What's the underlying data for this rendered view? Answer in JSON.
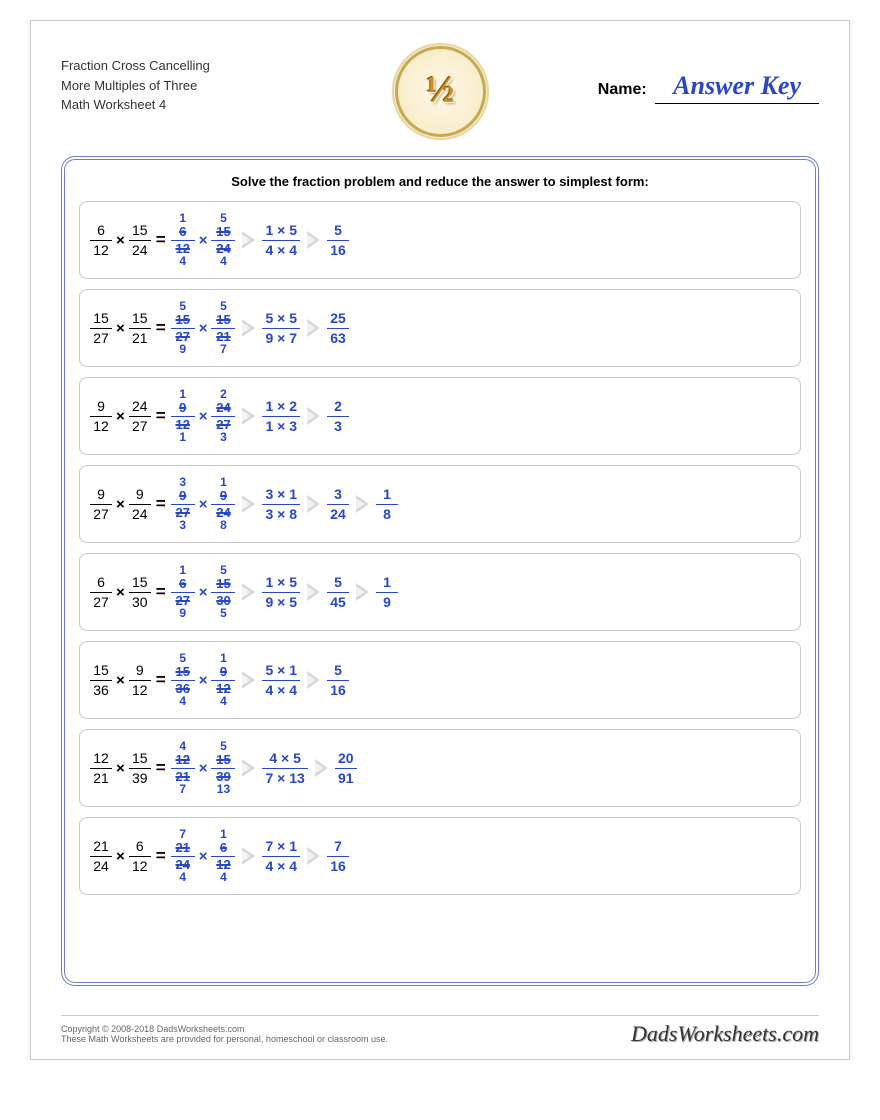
{
  "header": {
    "line1": "Fraction Cross Cancelling",
    "line2": "More Multiples of Three",
    "line3": "Math Worksheet 4",
    "logo_text": "½",
    "name_label": "Name:",
    "answer_key": "Answer Key"
  },
  "instruction": "Solve the fraction problem and reduce the answer to simplest form:",
  "colors": {
    "blue": "#2846c8",
    "border": "#6d7dc9",
    "arrow": "#d8d8d8"
  },
  "problems": [
    {
      "f1": {
        "n": "6",
        "d": "12"
      },
      "f2": {
        "n": "15",
        "d": "24"
      },
      "c1": {
        "tn": "1",
        "sn": "6",
        "sd": "12",
        "bd": "4"
      },
      "c2": {
        "tn": "5",
        "sn": "15",
        "sd": "24",
        "bd": "4"
      },
      "steps": [
        {
          "n": "1 × 5",
          "d": "4 × 4"
        },
        {
          "n": "5",
          "d": "16"
        }
      ]
    },
    {
      "f1": {
        "n": "15",
        "d": "27"
      },
      "f2": {
        "n": "15",
        "d": "21"
      },
      "c1": {
        "tn": "5",
        "sn": "15",
        "sd": "27",
        "bd": "9"
      },
      "c2": {
        "tn": "5",
        "sn": "15",
        "sd": "21",
        "bd": "7"
      },
      "steps": [
        {
          "n": "5 × 5",
          "d": "9 × 7"
        },
        {
          "n": "25",
          "d": "63"
        }
      ]
    },
    {
      "f1": {
        "n": "9",
        "d": "12"
      },
      "f2": {
        "n": "24",
        "d": "27"
      },
      "c1": {
        "tn": "1",
        "sn": "9",
        "sd": "12",
        "bd": "1"
      },
      "c2": {
        "tn": "2",
        "sn": "24",
        "sd": "27",
        "bd": "3"
      },
      "steps": [
        {
          "n": "1 × 2",
          "d": "1 × 3"
        },
        {
          "n": "2",
          "d": "3"
        }
      ]
    },
    {
      "f1": {
        "n": "9",
        "d": "27"
      },
      "f2": {
        "n": "9",
        "d": "24"
      },
      "c1": {
        "tn": "3",
        "sn": "9",
        "sd": "27",
        "bd": "3"
      },
      "c2": {
        "tn": "1",
        "sn": "9",
        "sd": "24",
        "bd": "8"
      },
      "steps": [
        {
          "n": "3 × 1",
          "d": "3 × 8"
        },
        {
          "n": "3",
          "d": "24"
        },
        {
          "n": "1",
          "d": "8"
        }
      ]
    },
    {
      "f1": {
        "n": "6",
        "d": "27"
      },
      "f2": {
        "n": "15",
        "d": "30"
      },
      "c1": {
        "tn": "1",
        "sn": "6",
        "sd": "27",
        "bd": "9"
      },
      "c2": {
        "tn": "5",
        "sn": "15",
        "sd": "30",
        "bd": "5"
      },
      "steps": [
        {
          "n": "1 × 5",
          "d": "9 × 5"
        },
        {
          "n": "5",
          "d": "45"
        },
        {
          "n": "1",
          "d": "9"
        }
      ]
    },
    {
      "f1": {
        "n": "15",
        "d": "36"
      },
      "f2": {
        "n": "9",
        "d": "12"
      },
      "c1": {
        "tn": "5",
        "sn": "15",
        "sd": "36",
        "bd": "4"
      },
      "c2": {
        "tn": "1",
        "sn": "9",
        "sd": "12",
        "bd": "4"
      },
      "steps": [
        {
          "n": "5 × 1",
          "d": "4 × 4"
        },
        {
          "n": "5",
          "d": "16"
        }
      ]
    },
    {
      "f1": {
        "n": "12",
        "d": "21"
      },
      "f2": {
        "n": "15",
        "d": "39"
      },
      "c1": {
        "tn": "4",
        "sn": "12",
        "sd": "21",
        "bd": "7"
      },
      "c2": {
        "tn": "5",
        "sn": "15",
        "sd": "39",
        "bd": "13"
      },
      "steps": [
        {
          "n": "4 × 5",
          "d": "7 × 13"
        },
        {
          "n": "20",
          "d": "91"
        }
      ]
    },
    {
      "f1": {
        "n": "21",
        "d": "24"
      },
      "f2": {
        "n": "6",
        "d": "12"
      },
      "c1": {
        "tn": "7",
        "sn": "21",
        "sd": "24",
        "bd": "4"
      },
      "c2": {
        "tn": "1",
        "sn": "6",
        "sd": "12",
        "bd": "4"
      },
      "steps": [
        {
          "n": "7 × 1",
          "d": "4 × 4"
        },
        {
          "n": "7",
          "d": "16"
        }
      ]
    }
  ],
  "footer": {
    "copyright": "Copyright © 2008-2018 DadsWorksheets.com",
    "disclaimer": "These Math Worksheets are provided for personal, homeschool or classroom use.",
    "brand": "DadsWorksheets.com"
  }
}
